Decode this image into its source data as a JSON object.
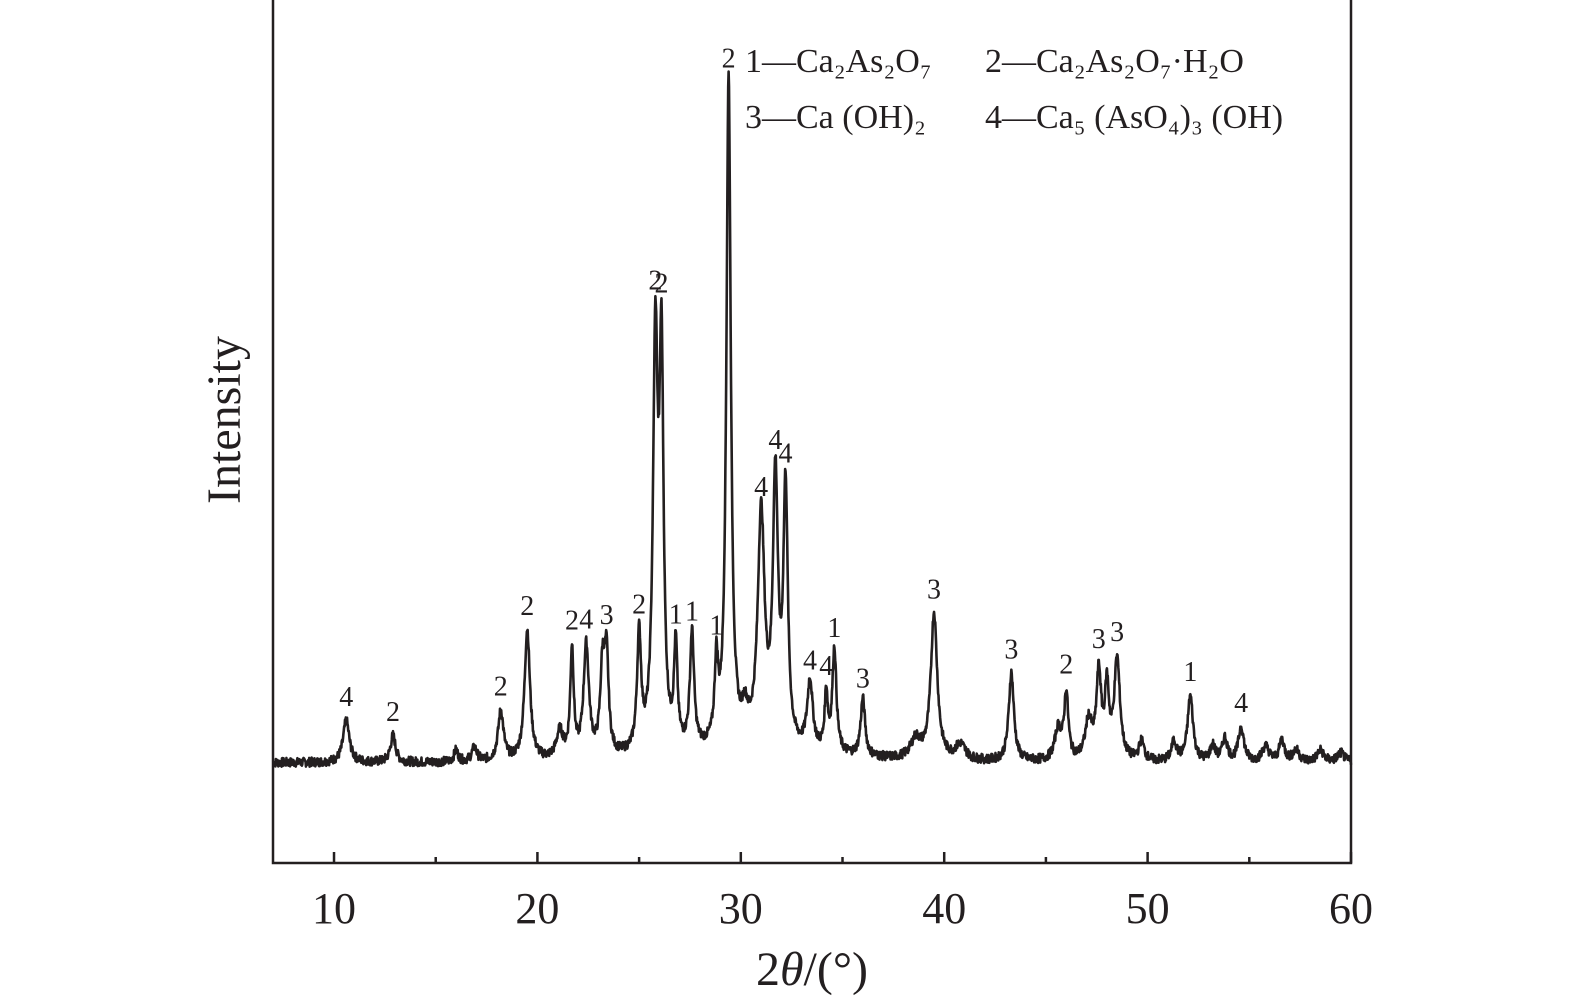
{
  "chart_data": {
    "type": "line",
    "xlabel": "2θ/(°)",
    "ylabel": "Intensity",
    "xlim": [
      7,
      60
    ],
    "ylim": [
      -0.12,
      1.0
    ],
    "xticks": [
      10,
      20,
      30,
      40,
      50,
      60
    ],
    "yticks": [],
    "grid": false,
    "legend_position": "top-right",
    "legend": [
      {
        "id": "1",
        "base": "Ca",
        "sub1": "2",
        "mid": "As",
        "sub2": "2",
        "tail": "O",
        "sub3": "7",
        "rest": ""
      },
      {
        "id": "2",
        "base": "Ca",
        "sub1": "2",
        "mid": "As",
        "sub2": "2",
        "tail": "O",
        "sub3": "7",
        "rest": "·H₂O"
      },
      {
        "id": "3",
        "text": "Ca (OH)₂"
      },
      {
        "id": "4",
        "text": "Ca₅ (AsO₄)₃ (OH)"
      }
    ],
    "legend_lines": [
      "1—Ca₂As₂O₇",
      "2—Ca₂As₂O₇·H₂O",
      "3—Ca (OH)₂",
      "4—Ca₅ (AsO₄)₃ (OH)"
    ],
    "baseline": 0.01,
    "peaks": [
      {
        "x": 10.6,
        "y": 0.055,
        "w": 0.18,
        "label": "4"
      },
      {
        "x": 12.9,
        "y": 0.035,
        "w": 0.15,
        "label": "2"
      },
      {
        "x": 16.0,
        "y": 0.015,
        "w": 0.12,
        "label": ""
      },
      {
        "x": 16.9,
        "y": 0.018,
        "w": 0.15,
        "label": ""
      },
      {
        "x": 18.2,
        "y": 0.065,
        "w": 0.16,
        "label": "2"
      },
      {
        "x": 19.5,
        "y": 0.17,
        "w": 0.16,
        "label": "2"
      },
      {
        "x": 21.1,
        "y": 0.035,
        "w": 0.2,
        "label": ""
      },
      {
        "x": 21.7,
        "y": 0.14,
        "w": 0.1,
        "label": "2"
      },
      {
        "x": 22.4,
        "y": 0.145,
        "w": 0.16,
        "label": "4"
      },
      {
        "x": 23.2,
        "y": 0.11,
        "w": 0.13,
        "label": ""
      },
      {
        "x": 23.4,
        "y": 0.12,
        "w": 0.12,
        "label": "3"
      },
      {
        "x": 25.0,
        "y": 0.15,
        "w": 0.12,
        "label": "2"
      },
      {
        "x": 25.8,
        "y": 0.52,
        "w": 0.14,
        "label": "2"
      },
      {
        "x": 26.1,
        "y": 0.49,
        "w": 0.12,
        "label": "2"
      },
      {
        "x": 26.8,
        "y": 0.13,
        "w": 0.1,
        "label": "1"
      },
      {
        "x": 27.6,
        "y": 0.15,
        "w": 0.12,
        "label": "1"
      },
      {
        "x": 28.8,
        "y": 0.1,
        "w": 0.1,
        "label": "1"
      },
      {
        "x": 29.4,
        "y": 0.87,
        "w": 0.13,
        "label": "2"
      },
      {
        "x": 30.2,
        "y": 0.035,
        "w": 0.18,
        "label": ""
      },
      {
        "x": 31.0,
        "y": 0.3,
        "w": 0.2,
        "label": "4"
      },
      {
        "x": 31.7,
        "y": 0.34,
        "w": 0.15,
        "label": "4"
      },
      {
        "x": 32.2,
        "y": 0.33,
        "w": 0.13,
        "label": "4"
      },
      {
        "x": 33.4,
        "y": 0.09,
        "w": 0.16,
        "label": "4"
      },
      {
        "x": 34.2,
        "y": 0.075,
        "w": 0.09,
        "label": "4"
      },
      {
        "x": 34.6,
        "y": 0.135,
        "w": 0.12,
        "label": "1"
      },
      {
        "x": 36.0,
        "y": 0.075,
        "w": 0.13,
        "label": "3"
      },
      {
        "x": 38.6,
        "y": 0.025,
        "w": 0.3,
        "label": ""
      },
      {
        "x": 39.5,
        "y": 0.19,
        "w": 0.19,
        "label": "3"
      },
      {
        "x": 40.8,
        "y": 0.02,
        "w": 0.3,
        "label": ""
      },
      {
        "x": 43.3,
        "y": 0.115,
        "w": 0.15,
        "label": "3"
      },
      {
        "x": 45.6,
        "y": 0.04,
        "w": 0.2,
        "label": ""
      },
      {
        "x": 46.0,
        "y": 0.085,
        "w": 0.12,
        "label": "2"
      },
      {
        "x": 47.1,
        "y": 0.05,
        "w": 0.2,
        "label": ""
      },
      {
        "x": 47.6,
        "y": 0.11,
        "w": 0.14,
        "label": "3"
      },
      {
        "x": 48.0,
        "y": 0.09,
        "w": 0.12,
        "label": ""
      },
      {
        "x": 48.5,
        "y": 0.13,
        "w": 0.17,
        "label": "3"
      },
      {
        "x": 49.7,
        "y": 0.025,
        "w": 0.15,
        "label": ""
      },
      {
        "x": 51.3,
        "y": 0.025,
        "w": 0.15,
        "label": ""
      },
      {
        "x": 52.1,
        "y": 0.085,
        "w": 0.16,
        "label": "1"
      },
      {
        "x": 53.2,
        "y": 0.02,
        "w": 0.15,
        "label": ""
      },
      {
        "x": 53.8,
        "y": 0.03,
        "w": 0.15,
        "label": ""
      },
      {
        "x": 54.6,
        "y": 0.045,
        "w": 0.16,
        "label": "4"
      },
      {
        "x": 55.8,
        "y": 0.02,
        "w": 0.2,
        "label": ""
      },
      {
        "x": 56.6,
        "y": 0.028,
        "w": 0.15,
        "label": ""
      },
      {
        "x": 57.3,
        "y": 0.015,
        "w": 0.2,
        "label": ""
      },
      {
        "x": 58.5,
        "y": 0.015,
        "w": 0.2,
        "label": ""
      },
      {
        "x": 59.5,
        "y": 0.012,
        "w": 0.2,
        "label": ""
      }
    ]
  }
}
